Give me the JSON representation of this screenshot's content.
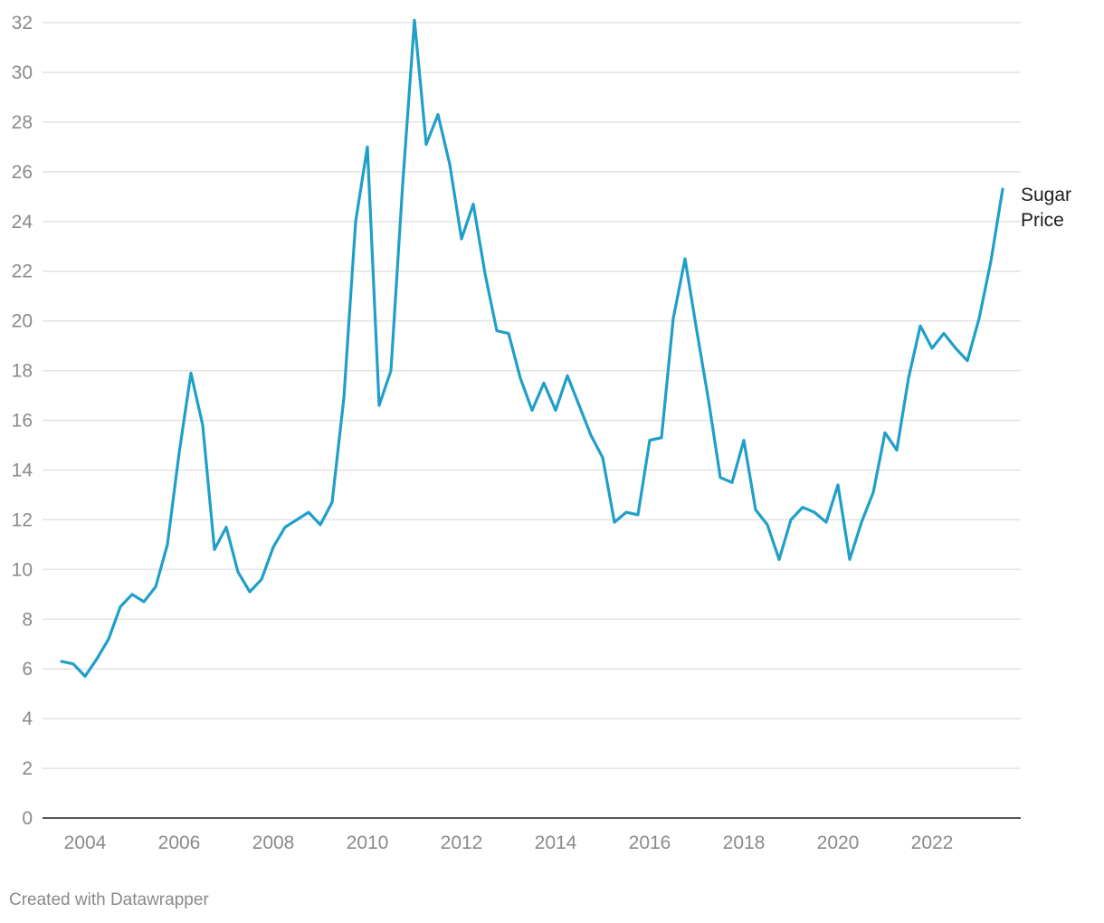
{
  "colors": {
    "line": "#1f9fc9",
    "grid": "#e3e3e3",
    "axis": "#1d1d1d",
    "tick_text": "#8a8a8a"
  },
  "credit": "Created with Datawrapper",
  "chart_data": {
    "type": "line",
    "title": "",
    "xlabel": "",
    "ylabel": "",
    "xlim": [
      2003,
      2024
    ],
    "ylim": [
      0,
      32
    ],
    "yticks": [
      0,
      2,
      4,
      6,
      8,
      10,
      12,
      14,
      16,
      18,
      20,
      22,
      24,
      26,
      28,
      30,
      32
    ],
    "xticks": [
      2004,
      2006,
      2008,
      2010,
      2012,
      2014,
      2016,
      2018,
      2020,
      2022
    ],
    "grid": true,
    "series": [
      {
        "name_lines": [
          "Sugar",
          "Price"
        ],
        "x": [
          2003.5,
          2003.75,
          2004.0,
          2004.25,
          2004.5,
          2004.75,
          2005.0,
          2005.25,
          2005.5,
          2005.75,
          2006.0,
          2006.25,
          2006.5,
          2006.75,
          2007.0,
          2007.25,
          2007.5,
          2007.75,
          2008.0,
          2008.25,
          2008.5,
          2008.75,
          2009.0,
          2009.25,
          2009.5,
          2009.75,
          2010.0,
          2010.25,
          2010.5,
          2010.75,
          2011.0,
          2011.25,
          2011.5,
          2011.75,
          2012.0,
          2012.25,
          2012.5,
          2012.75,
          2013.0,
          2013.25,
          2013.5,
          2013.75,
          2014.0,
          2014.25,
          2014.5,
          2014.75,
          2015.0,
          2015.25,
          2015.5,
          2015.75,
          2016.0,
          2016.25,
          2016.5,
          2016.75,
          2017.0,
          2017.25,
          2017.5,
          2017.75,
          2018.0,
          2018.25,
          2018.5,
          2018.75,
          2019.0,
          2019.25,
          2019.5,
          2019.75,
          2020.0,
          2020.25,
          2020.5,
          2020.75,
          2021.0,
          2021.25,
          2021.5,
          2021.75,
          2022.0,
          2022.25,
          2022.5,
          2022.75,
          2023.0,
          2023.25,
          2023.5
        ],
        "values": [
          6.3,
          6.2,
          5.7,
          6.4,
          7.2,
          8.5,
          9.0,
          8.7,
          9.3,
          11.0,
          14.7,
          17.9,
          15.8,
          10.8,
          11.7,
          9.9,
          9.1,
          9.6,
          10.9,
          11.7,
          12.0,
          12.3,
          11.8,
          12.7,
          16.9,
          24.0,
          27.0,
          16.6,
          18.0,
          25.5,
          32.1,
          27.1,
          28.3,
          26.3,
          23.3,
          24.7,
          21.9,
          19.6,
          19.5,
          17.7,
          16.4,
          17.5,
          16.4,
          17.8,
          16.6,
          15.4,
          14.5,
          11.9,
          12.3,
          12.2,
          15.2,
          15.3,
          20.1,
          22.5,
          19.6,
          16.8,
          13.7,
          13.5,
          15.2,
          12.4,
          11.8,
          10.4,
          12.0,
          12.5,
          12.3,
          11.9,
          13.4,
          10.4,
          11.9,
          13.1,
          15.5,
          14.8,
          17.7,
          19.8,
          18.9,
          19.5,
          18.9,
          18.4,
          20.1,
          22.4,
          25.3
        ]
      }
    ]
  }
}
